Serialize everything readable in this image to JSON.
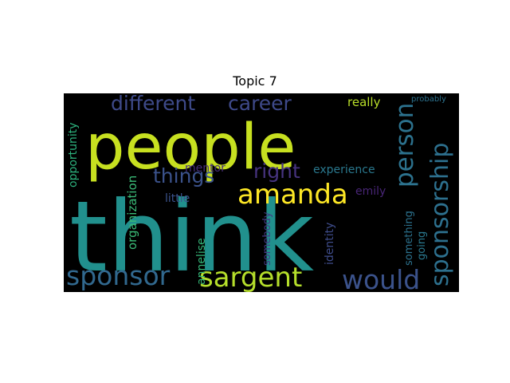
{
  "title": "Topic 7",
  "background_color": "#000000",
  "words": [
    {
      "text": "think",
      "color": "#21908d",
      "orientation": "horizontal"
    },
    {
      "text": "people",
      "color": "#c7e020",
      "orientation": "horizontal"
    },
    {
      "text": "amanda",
      "color": "#fde725",
      "orientation": "horizontal"
    },
    {
      "text": "sargent",
      "color": "#b5de2b",
      "orientation": "horizontal"
    },
    {
      "text": "sponsor",
      "color": "#31688e",
      "orientation": "horizontal"
    },
    {
      "text": "would",
      "color": "#3b528b",
      "orientation": "horizontal"
    },
    {
      "text": "person",
      "color": "#2c728e",
      "orientation": "vertical"
    },
    {
      "text": "sponsorship",
      "color": "#2d708e",
      "orientation": "vertical"
    },
    {
      "text": "different",
      "color": "#3e4a89",
      "orientation": "horizontal"
    },
    {
      "text": "career",
      "color": "#3e4989",
      "orientation": "horizontal"
    },
    {
      "text": "things",
      "color": "#3b528b",
      "orientation": "horizontal"
    },
    {
      "text": "right",
      "color": "#46337e",
      "orientation": "horizontal"
    },
    {
      "text": "really",
      "color": "#b8de29",
      "orientation": "horizontal"
    },
    {
      "text": "probably",
      "color": "#2c728e",
      "orientation": "horizontal"
    },
    {
      "text": "mentor",
      "color": "#472d7b",
      "orientation": "horizontal"
    },
    {
      "text": "experience",
      "color": "#2a788e",
      "orientation": "horizontal"
    },
    {
      "text": "emily",
      "color": "#482576",
      "orientation": "horizontal"
    },
    {
      "text": "little",
      "color": "#3b528b",
      "orientation": "horizontal"
    },
    {
      "text": "opportunity",
      "color": "#2db27d",
      "orientation": "vertical"
    },
    {
      "text": "organization",
      "color": "#3aba76",
      "orientation": "vertical"
    },
    {
      "text": "annelise",
      "color": "#35b779",
      "orientation": "vertical"
    },
    {
      "text": "somebody",
      "color": "#443a83",
      "orientation": "vertical"
    },
    {
      "text": "identity",
      "color": "#3e4c8a",
      "orientation": "vertical"
    },
    {
      "text": "going",
      "color": "#2a788e",
      "orientation": "vertical"
    },
    {
      "text": "something",
      "color": "#2c728e",
      "orientation": "vertical"
    }
  ]
}
